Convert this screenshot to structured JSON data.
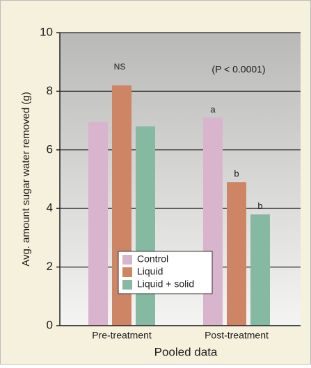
{
  "chart_data": {
    "type": "bar",
    "x_label": "Pooled data",
    "y_label": "Avg. amount sugar water removed (g)",
    "categories": [
      "Pre-treatment",
      "Post-treatment"
    ],
    "series": [
      {
        "name": "Control",
        "color": "#d9b4cd",
        "values": [
          6.95,
          7.1
        ]
      },
      {
        "name": "Liquid",
        "color": "#cd8566",
        "values": [
          8.2,
          4.9
        ]
      },
      {
        "name": "Liquid + solid",
        "color": "#86b9a1",
        "values": [
          6.8,
          3.8
        ]
      }
    ],
    "annotations": [
      "NS",
      "(P < 0.0001)",
      "a",
      "b",
      "b"
    ],
    "ylim": [
      0,
      10
    ],
    "yticks": [
      0,
      2,
      4,
      6,
      8,
      10
    ],
    "grid": true
  }
}
